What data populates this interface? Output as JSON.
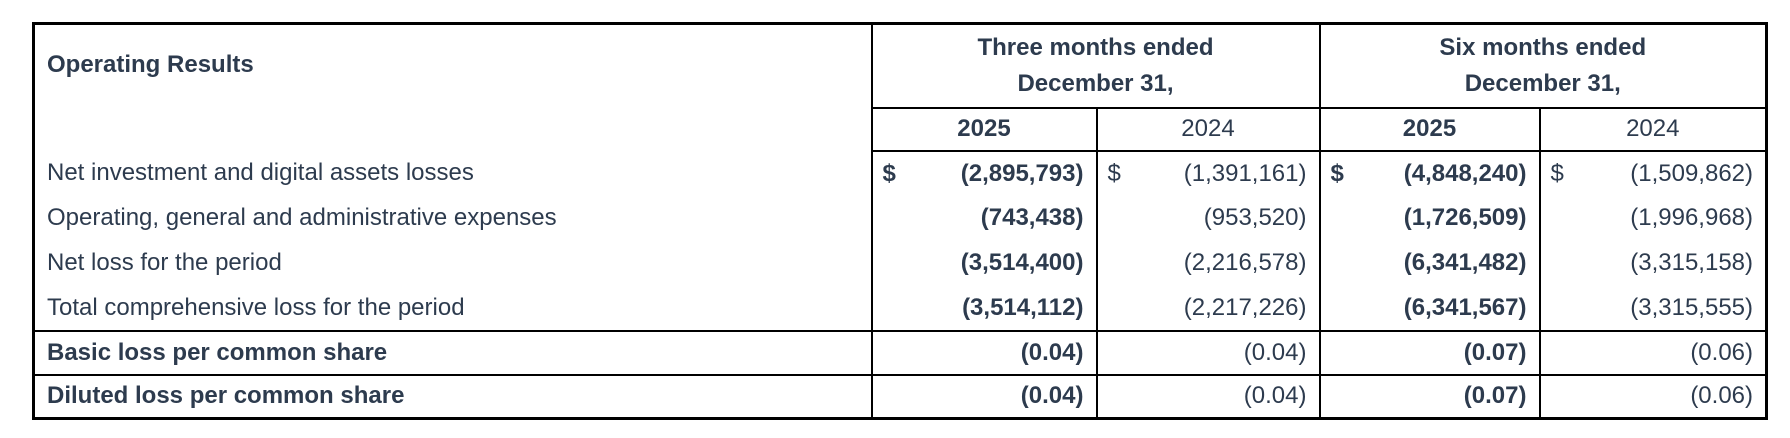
{
  "table": {
    "title": "Operating Results",
    "col_groups": [
      {
        "line1": "Three months ended",
        "line2": "December 31,"
      },
      {
        "line1": "Six months ended",
        "line2": "December 31,"
      }
    ],
    "years": [
      "2025",
      "2024",
      "2025",
      "2024"
    ],
    "currency_symbol": "$",
    "rows": [
      {
        "label": "Net investment and digital assets losses",
        "currency": [
          "$",
          "$",
          "$",
          "$"
        ],
        "values": [
          "(2,895,793)",
          "(1,391,161)",
          "(4,848,240)",
          "(1,509,862)"
        ]
      },
      {
        "label": "Operating, general and administrative expenses",
        "values": [
          "(743,438)",
          "(953,520)",
          "(1,726,509)",
          "(1,996,968)"
        ]
      },
      {
        "label": "Net loss for the period",
        "values": [
          "(3,514,400)",
          "(2,216,578)",
          "(6,341,482)",
          "(3,315,158)"
        ]
      },
      {
        "label": "Total comprehensive loss for the period",
        "values": [
          "(3,514,112)",
          "(2,217,226)",
          "(6,341,567)",
          "(3,315,555)"
        ]
      }
    ],
    "per_share_rows": [
      {
        "label": "Basic loss per common share",
        "values": [
          "(0.04)",
          "(0.04)",
          "(0.07)",
          "(0.06)"
        ]
      },
      {
        "label": "Diluted loss per common share",
        "values": [
          "(0.04)",
          "(0.04)",
          "(0.07)",
          "(0.06)"
        ]
      }
    ],
    "colors": {
      "text": "#2d3b4e",
      "border": "#000000",
      "background": "#ffffff"
    }
  }
}
